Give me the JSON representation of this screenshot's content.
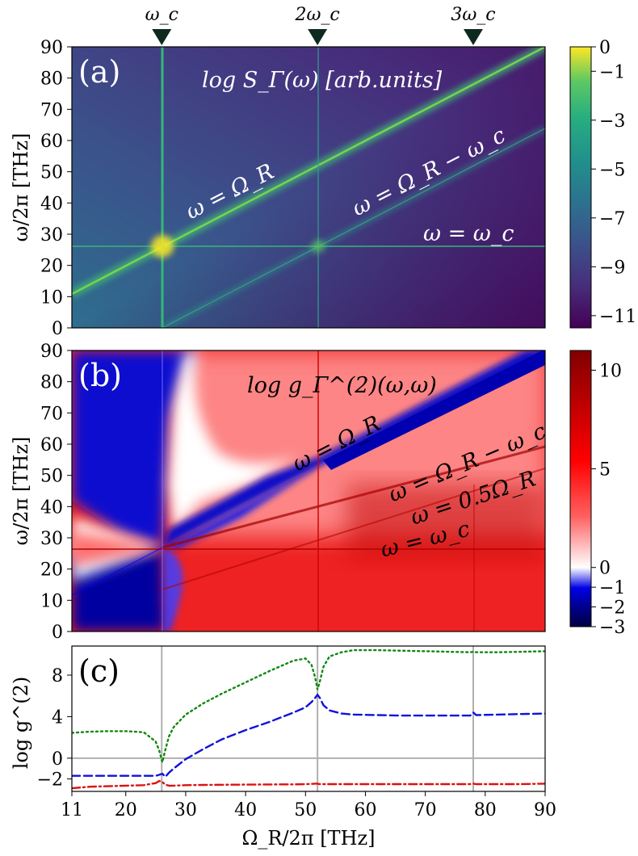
{
  "chart_data": [
    {
      "panel": "(a)",
      "type": "heatmap",
      "title": "log S_Γ(ω)   [arb.units]",
      "ylabel": "ω/2π   [THz]",
      "xlim": [
        11,
        90
      ],
      "ylim": [
        0,
        90
      ],
      "yticks": [
        "0",
        "10",
        "20",
        "30",
        "40",
        "50",
        "60",
        "70",
        "80",
        "90"
      ],
      "top_markers": [
        "ω_c",
        "2ω_c",
        "3ω_c"
      ],
      "top_marker_x": [
        26,
        52,
        78
      ],
      "colorbar": {
        "range": [
          -11.5,
          0
        ],
        "ticks": [
          "0",
          "−1",
          "−3",
          "−5",
          "−7",
          "−9",
          "−11"
        ],
        "tick_values": [
          0,
          -1,
          -3,
          -5,
          -7,
          -9,
          -11
        ],
        "colormap": "viridis"
      },
      "annotations": [
        "ω = Ω_R",
        "ω = Ω_R − ω_c",
        "ω = ω_c"
      ]
    },
    {
      "panel": "(b)",
      "type": "heatmap",
      "title": "log g_Γ^(2)(ω,ω)",
      "ylabel": "ω/2π   [THz]",
      "xlim": [
        11,
        90
      ],
      "ylim": [
        0,
        90
      ],
      "yticks": [
        "0",
        "10",
        "20",
        "30",
        "40",
        "50",
        "60",
        "70",
        "80",
        "90"
      ],
      "colorbar": {
        "range": [
          -3,
          11
        ],
        "ticks": [
          "10",
          "5",
          "0",
          "−1",
          "−2",
          "−3"
        ],
        "tick_values": [
          10,
          5,
          0,
          -1,
          -2,
          -3
        ],
        "colormap": "seismic"
      },
      "annotations": [
        "ω = Ω_R",
        "ω = Ω_R − ω_c",
        "ω = 0.5Ω_R",
        "ω = ω_c"
      ]
    },
    {
      "panel": "(c)",
      "type": "line",
      "xlabel": "Ω_R/2π    [THz]",
      "ylabel": "log g^(2)",
      "xlim": [
        11,
        90
      ],
      "ylim": [
        -3.2,
        10.8
      ],
      "xticks": [
        "11",
        "20",
        "30",
        "40",
        "50",
        "60",
        "70",
        "80",
        "90"
      ],
      "xtick_values": [
        11,
        20,
        30,
        40,
        50,
        60,
        70,
        80,
        90
      ],
      "yticks": [
        "−2",
        "0",
        "4",
        "8"
      ],
      "ytick_values": [
        -2,
        0,
        4,
        8
      ],
      "vlines": [
        26,
        52,
        78
      ],
      "hline": 0,
      "x": [
        11,
        14,
        17,
        20,
        23,
        25,
        25.6,
        26.1,
        26.6,
        27.2,
        28,
        30,
        33,
        36,
        40,
        44,
        48,
        50,
        51,
        51.6,
        52,
        52.4,
        53,
        54,
        56,
        58,
        62,
        66,
        70,
        74,
        77.5,
        78,
        78.5,
        82,
        86,
        90
      ],
      "series": [
        {
          "color": "#118811",
          "style": "dotted",
          "values": [
            2.45,
            2.55,
            2.6,
            2.6,
            2.5,
            1.6,
            0.7,
            -0.4,
            0.8,
            2.1,
            3.0,
            4.2,
            5.3,
            6.2,
            7.3,
            8.4,
            9.4,
            9.6,
            9.0,
            7.8,
            6.6,
            7.4,
            8.8,
            9.8,
            10.2,
            10.4,
            10.4,
            10.35,
            10.3,
            10.25,
            10.2,
            10.25,
            10.2,
            10.2,
            10.25,
            10.3
          ]
        },
        {
          "color": "#1111dd",
          "style": "dashed",
          "values": [
            -1.7,
            -1.7,
            -1.7,
            -1.7,
            -1.7,
            -1.7,
            -1.6,
            -1.5,
            -1.8,
            -1.4,
            -1.0,
            -0.1,
            0.9,
            1.8,
            2.7,
            3.5,
            4.4,
            4.9,
            5.4,
            5.8,
            6.1,
            5.8,
            5.1,
            4.6,
            4.3,
            4.2,
            4.15,
            4.1,
            4.1,
            4.1,
            4.1,
            4.4,
            4.15,
            4.2,
            4.25,
            4.3
          ]
        },
        {
          "color": "#dd1111",
          "style": "dashdot",
          "values": [
            -2.9,
            -2.75,
            -2.7,
            -2.65,
            -2.6,
            -2.4,
            -2.2,
            -2.3,
            -2.55,
            -2.65,
            -2.65,
            -2.6,
            -2.58,
            -2.56,
            -2.55,
            -2.53,
            -2.52,
            -2.5,
            -2.48,
            -2.45,
            -2.45,
            -2.5,
            -2.5,
            -2.5,
            -2.5,
            -2.5,
            -2.5,
            -2.5,
            -2.5,
            -2.5,
            -2.5,
            -2.45,
            -2.5,
            -2.5,
            -2.5,
            -2.45
          ]
        }
      ]
    }
  ]
}
